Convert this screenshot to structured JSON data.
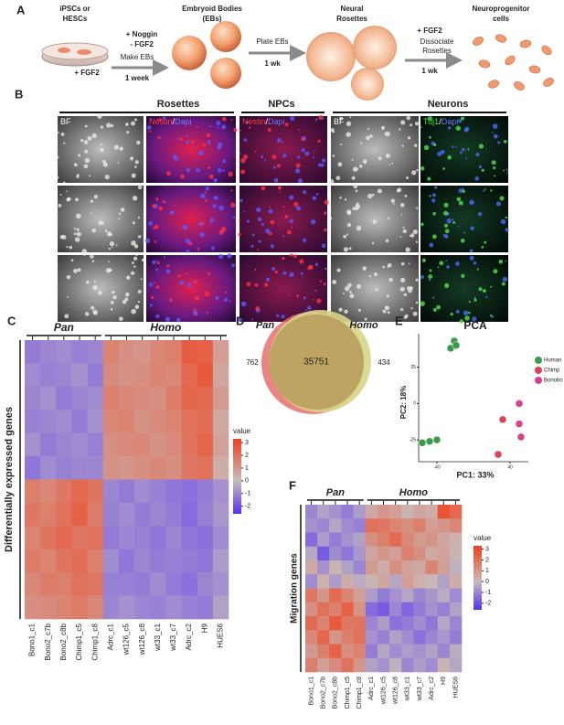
{
  "panel_a": {
    "letter": "A",
    "start_label": [
      "iPSCs or",
      "HESCs"
    ],
    "start_factor": "+ FGF2",
    "step1_factors": [
      "+ Noggin",
      "- FGF2"
    ],
    "step1_action": "Make EBs",
    "step1_time": "1 week",
    "eb_label": [
      "Embryoid Bodies",
      "(EBs)"
    ],
    "step2_action": "Plate EBs",
    "step2_time": "1 wk",
    "rosette_label": [
      "Neural",
      "Rosettes"
    ],
    "step3_factor": "+ FGF2",
    "step3_action": [
      "Dissociate",
      "Rosettes"
    ],
    "step3_time": "1 wk",
    "npc_label": [
      "Neuroprogenitor",
      "cells"
    ]
  },
  "panel_b": {
    "letter": "B",
    "groups": [
      "Rosettes",
      "NPCs",
      "Neurons"
    ],
    "stains": [
      [
        {
          "text": "BF",
          "color": "#ffffff"
        }
      ],
      [
        {
          "text": "Nestin",
          "color": "#ff3b3b"
        },
        {
          "text": "/",
          "color": "#ffffff"
        },
        {
          "text": "Dapi",
          "color": "#6a78ff"
        }
      ],
      [
        {
          "text": "Nestin",
          "color": "#ff3b3b"
        },
        {
          "text": "/",
          "color": "#ffffff"
        },
        {
          "text": "Dapi",
          "color": "#6a78ff"
        }
      ],
      [
        {
          "text": "BF",
          "color": "#ffffff"
        }
      ],
      [
        {
          "text": "Tuj1",
          "color": "#3ee03e"
        },
        {
          "text": "/",
          "color": "#ffffff"
        },
        {
          "text": "Dapi",
          "color": "#6a78ff"
        }
      ]
    ]
  },
  "panel_c": {
    "letter": "C",
    "group_labels": [
      "Pan",
      "Homo"
    ],
    "ylabel": "Differentially expressed genes",
    "columns": [
      "Bono1_c1",
      "Bono2_c7b",
      "Bono2_c8b",
      "Chimp1_c5",
      "Chimp1_c8",
      "Adrc_c1",
      "wt126_c5",
      "wt126_c8",
      "wt33_c1",
      "wt33_c7",
      "Adrc_c2",
      "H9",
      "HUES6"
    ],
    "values": [
      [
        -1.2,
        -1.0,
        -0.9,
        -1.1,
        -1.0,
        1.5,
        1.2,
        1.0,
        1.4,
        1.6,
        2.5,
        2.4,
        0.8
      ],
      [
        -0.9,
        -1.1,
        -1.0,
        -0.8,
        -1.2,
        1.3,
        1.1,
        1.2,
        1.5,
        1.4,
        2.2,
        2.6,
        0.6
      ],
      [
        -1.0,
        -0.8,
        -1.2,
        -1.0,
        -0.9,
        1.6,
        1.4,
        1.3,
        1.2,
        1.7,
        2.3,
        2.2,
        0.9
      ],
      [
        -1.1,
        -1.0,
        -0.9,
        -1.2,
        -0.8,
        1.4,
        1.5,
        1.1,
        1.3,
        1.5,
        2.0,
        2.1,
        0.5
      ],
      [
        -0.8,
        -1.2,
        -1.0,
        -0.9,
        -1.1,
        1.2,
        1.3,
        1.4,
        1.1,
        1.3,
        1.9,
        2.3,
        0.7
      ],
      [
        -1.3,
        -0.9,
        -1.1,
        -1.0,
        -1.0,
        1.1,
        1.0,
        1.2,
        1.4,
        1.2,
        1.8,
        2.0,
        0.4
      ],
      [
        1.6,
        1.4,
        1.8,
        2.2,
        1.9,
        -1.0,
        -1.2,
        -0.9,
        -1.1,
        -1.3,
        -1.4,
        -1.2,
        -0.8
      ],
      [
        1.8,
        1.6,
        2.0,
        2.4,
        1.7,
        -1.1,
        -0.9,
        -1.2,
        -1.0,
        -1.2,
        -1.5,
        -1.1,
        -0.7
      ],
      [
        1.5,
        1.9,
        2.2,
        1.8,
        2.0,
        -1.2,
        -1.0,
        -1.1,
        -1.3,
        -1.0,
        -1.3,
        -1.4,
        -0.9
      ],
      [
        1.7,
        1.5,
        1.9,
        2.1,
        1.6,
        -0.9,
        -1.3,
        -1.0,
        -1.2,
        -1.1,
        -1.2,
        -1.3,
        -0.6
      ],
      [
        1.4,
        1.7,
        1.6,
        2.0,
        1.8,
        -1.1,
        -1.1,
        -1.2,
        -0.9,
        -1.2,
        -1.4,
        -1.0,
        -0.8
      ],
      [
        1.2,
        1.3,
        1.5,
        1.7,
        1.4,
        -1.0,
        -0.8,
        -1.0,
        -1.1,
        -0.9,
        -1.1,
        -1.2,
        -0.5
      ]
    ],
    "colorbar_title": "value",
    "colorbar_lim": [
      -2.6,
      3.3
    ],
    "colorbar_ticks": [
      3,
      2,
      1,
      0,
      -1,
      -2
    ],
    "colors": [
      "#5530f5",
      "#c8bcbc",
      "#f0401a"
    ]
  },
  "panel_d": {
    "letter": "D",
    "set_labels": [
      "Pan",
      "Homo"
    ],
    "pan_only": 762,
    "shared": 35751,
    "homo_only": 434
  },
  "panel_e": {
    "letter": "E",
    "title": "PCA",
    "xlabel": "PC1: 33%",
    "ylabel": "PC2: 18%",
    "xlim": [
      -60,
      60
    ],
    "ylim": [
      -40,
      48
    ],
    "xticks": [
      -40,
      40
    ],
    "yticks": [
      -25,
      0,
      25
    ],
    "series": [
      {
        "name": "Human",
        "color": "#3c9a4c",
        "x": [
          -25,
          -21,
          -19,
          -56,
          -48,
          -40
        ],
        "y": [
          38,
          43,
          40,
          -27,
          -26,
          -25
        ]
      },
      {
        "name": "Chimp",
        "color": "#e0405a",
        "x": [
          32,
          27
        ],
        "y": [
          -11,
          -35
        ]
      },
      {
        "name": "Bonobo",
        "color": "#d8408a",
        "x": [
          50,
          50,
          52
        ],
        "y": [
          0,
          -14,
          -23
        ]
      }
    ]
  },
  "panel_f": {
    "letter": "F",
    "group_labels": [
      "Pan",
      "Homo"
    ],
    "ylabel": "Migration genes",
    "columns": [
      "Bono1_c1",
      "Bono2_c7b",
      "Bono2_c8b",
      "Chimp1_c5",
      "Chimp1_c8",
      "Adrc_c1",
      "wt126_c5",
      "wt126_c8",
      "wt33_c1",
      "wt33_c7",
      "Adrc_c2",
      "H9",
      "HUES6"
    ],
    "values": [
      [
        -1.0,
        -0.5,
        -0.8,
        -1.2,
        -0.6,
        0.5,
        1.0,
        0.8,
        0.2,
        0.6,
        0.4,
        2.8,
        2.2
      ],
      [
        -0.8,
        -1.0,
        -0.4,
        -0.9,
        -1.1,
        2.0,
        1.8,
        1.5,
        1.2,
        1.6,
        0.8,
        1.0,
        1.4
      ],
      [
        -1.5,
        -0.6,
        -1.2,
        -0.8,
        -0.5,
        1.2,
        1.6,
        2.2,
        1.4,
        0.9,
        1.1,
        0.6,
        0.3
      ],
      [
        -0.4,
        -1.8,
        -0.9,
        -1.3,
        -0.7,
        0.6,
        1.0,
        0.8,
        1.6,
        1.2,
        0.5,
        0.7,
        0.2
      ],
      [
        0.5,
        -0.8,
        0.2,
        -0.5,
        -1.0,
        0.9,
        0.4,
        1.2,
        0.7,
        0.5,
        1.5,
        0.8,
        -0.2
      ],
      [
        -0.9,
        0.3,
        -0.6,
        0.4,
        -0.3,
        0.2,
        0.6,
        -0.4,
        0.8,
        0.3,
        0.1,
        -0.5,
        0.4
      ],
      [
        1.8,
        1.0,
        2.2,
        1.5,
        0.8,
        -0.6,
        -1.2,
        -0.8,
        -0.4,
        -1.0,
        -0.7,
        -0.3,
        -0.9
      ],
      [
        1.2,
        2.0,
        1.6,
        2.4,
        1.1,
        -1.5,
        -1.8,
        -1.0,
        -1.6,
        -1.2,
        -0.8,
        -1.1,
        -0.5
      ],
      [
        2.2,
        1.5,
        2.6,
        1.8,
        1.9,
        -1.0,
        -0.6,
        -1.4,
        -1.2,
        -0.9,
        -1.3,
        -0.4,
        -1.0
      ],
      [
        1.4,
        2.3,
        1.0,
        1.6,
        2.0,
        -0.8,
        -1.1,
        -0.5,
        -0.9,
        -1.4,
        -1.0,
        -0.7,
        -1.2
      ],
      [
        0.9,
        1.6,
        2.4,
        1.2,
        1.5,
        -1.2,
        -0.4,
        -0.9,
        -0.6,
        -0.8,
        -0.5,
        -1.0,
        -0.3
      ],
      [
        1.6,
        0.8,
        1.3,
        2.0,
        1.0,
        -0.5,
        -0.8,
        -0.2,
        -1.0,
        -0.6,
        -0.9,
        0.2,
        -0.4
      ]
    ],
    "colorbar_title": "value",
    "colorbar_lim": [
      -2.6,
      3.3
    ],
    "colorbar_ticks": [
      3,
      2,
      1,
      0,
      -1,
      -2
    ],
    "colors": [
      "#5530f5",
      "#c8bcbc",
      "#f0401a"
    ]
  }
}
